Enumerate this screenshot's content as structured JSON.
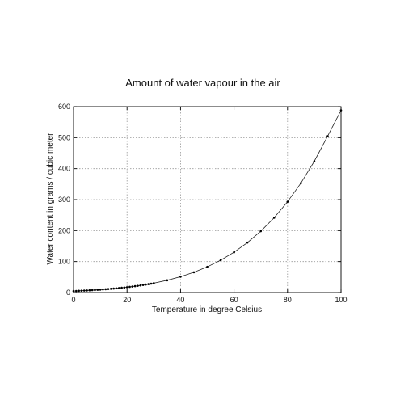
{
  "chart_data": {
    "type": "line",
    "title": "Amount of water vapour in the air",
    "xlabel": "Temperature in degree Celsius",
    "ylabel": "Water content in grams / cubic meter",
    "xlim": [
      0,
      100
    ],
    "ylim": [
      0,
      600
    ],
    "xticks": [
      0,
      20,
      40,
      60,
      80,
      100
    ],
    "yticks": [
      0,
      100,
      200,
      300,
      400,
      500,
      600
    ],
    "grid": true,
    "legend": "none",
    "series": [
      {
        "style": "line-with-markers",
        "color": "#000000",
        "x": [
          0,
          1,
          2,
          3,
          4,
          5,
          6,
          7,
          8,
          9,
          10,
          11,
          12,
          13,
          14,
          15,
          16,
          17,
          18,
          19,
          20,
          21,
          22,
          23,
          24,
          25,
          26,
          27,
          28,
          29,
          30,
          35,
          40,
          45,
          50,
          55,
          60,
          65,
          70,
          75,
          80,
          85,
          90,
          95,
          100
        ],
        "y": [
          4.8,
          5.2,
          5.6,
          6.0,
          6.4,
          6.8,
          7.3,
          7.8,
          8.3,
          8.8,
          9.4,
          10.0,
          10.7,
          11.4,
          12.1,
          12.8,
          13.6,
          14.5,
          15.4,
          16.3,
          17.3,
          18.3,
          19.4,
          20.6,
          21.8,
          23.0,
          24.4,
          25.8,
          27.2,
          28.7,
          30.3,
          39.6,
          51.1,
          65.4,
          83.0,
          104.3,
          130.2,
          161.3,
          198.1,
          241.6,
          293.0,
          353.3,
          423.6,
          504.8,
          588.2
        ]
      }
    ]
  }
}
